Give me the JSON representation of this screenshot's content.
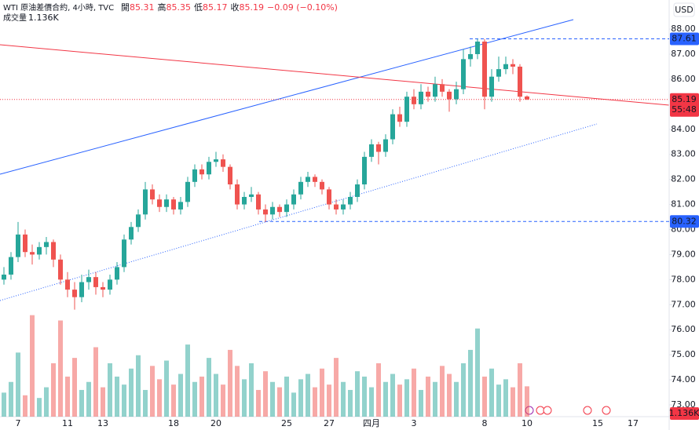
{
  "chart_data": {
    "type": "candlestick",
    "title": "WTI 原油差價合約, 4小時, TVC",
    "legend": {
      "open_label": "開",
      "open": 85.31,
      "high_label": "高",
      "high": 85.35,
      "low_label": "低",
      "low": 85.17,
      "close_label": "收",
      "close": 85.19,
      "change": "−0.09 (−0.10%)"
    },
    "volume_title": "成交量",
    "currency": "USD",
    "categories": [
      null,
      null,
      "7",
      null,
      null,
      null,
      null,
      null,
      null,
      "11",
      null,
      null,
      null,
      null,
      "13",
      null,
      null,
      null,
      null,
      null,
      null,
      null,
      null,
      null,
      "18",
      null,
      null,
      null,
      null,
      null,
      "20",
      null,
      null,
      null,
      null,
      null,
      null,
      null,
      null,
      null,
      "25",
      null,
      null,
      null,
      null,
      null,
      "27",
      null,
      null,
      null,
      null,
      null,
      "四月",
      null,
      null,
      null,
      null,
      null,
      "3",
      null,
      null,
      null,
      null,
      null,
      null,
      null,
      null,
      null,
      "8",
      null,
      null,
      null,
      null,
      null,
      "10",
      null,
      null,
      null,
      null,
      null,
      null,
      null,
      null,
      null,
      "15",
      null,
      null,
      null,
      null,
      "17"
    ],
    "ohlc": [
      [
        78.0,
        78.5,
        77.8,
        78.2
      ],
      [
        78.2,
        79.1,
        78.0,
        78.9
      ],
      [
        78.9,
        80.3,
        78.7,
        79.8
      ],
      [
        79.8,
        80.0,
        78.9,
        79.1
      ],
      [
        79.1,
        79.4,
        78.6,
        79.0
      ],
      [
        79.0,
        79.5,
        78.8,
        79.3
      ],
      [
        79.3,
        79.7,
        79.0,
        79.5
      ],
      [
        79.5,
        79.6,
        78.5,
        78.8
      ],
      [
        78.8,
        79.0,
        77.8,
        78.0
      ],
      [
        78.0,
        78.3,
        77.3,
        77.6
      ],
      [
        77.6,
        77.9,
        76.8,
        77.3
      ],
      [
        77.3,
        78.2,
        77.1,
        77.9
      ],
      [
        77.9,
        78.4,
        77.6,
        78.1
      ],
      [
        78.1,
        78.3,
        77.4,
        77.7
      ],
      [
        77.7,
        77.9,
        77.3,
        77.6
      ],
      [
        77.6,
        78.2,
        77.4,
        78.0
      ],
      [
        78.0,
        78.7,
        77.8,
        78.5
      ],
      [
        78.5,
        79.8,
        78.3,
        79.6
      ],
      [
        79.6,
        80.3,
        79.4,
        80.1
      ],
      [
        80.1,
        80.8,
        79.9,
        80.6
      ],
      [
        80.6,
        81.9,
        80.4,
        81.6
      ],
      [
        81.6,
        81.8,
        81.0,
        81.2
      ],
      [
        81.2,
        81.4,
        80.7,
        80.9
      ],
      [
        80.9,
        81.4,
        80.7,
        81.2
      ],
      [
        81.2,
        81.3,
        80.6,
        80.8
      ],
      [
        80.8,
        81.3,
        80.6,
        81.1
      ],
      [
        81.1,
        82.1,
        80.9,
        81.9
      ],
      [
        81.9,
        82.6,
        81.7,
        82.4
      ],
      [
        82.4,
        82.6,
        82.0,
        82.2
      ],
      [
        82.2,
        82.9,
        82.0,
        82.7
      ],
      [
        82.7,
        83.1,
        82.5,
        82.8
      ],
      [
        82.8,
        83.0,
        82.3,
        82.5
      ],
      [
        82.5,
        82.6,
        81.6,
        81.8
      ],
      [
        81.8,
        82.0,
        80.8,
        81.0
      ],
      [
        81.0,
        81.5,
        80.8,
        81.3
      ],
      [
        81.3,
        81.7,
        81.1,
        81.4
      ],
      [
        81.4,
        81.5,
        80.6,
        80.8
      ],
      [
        80.8,
        81.0,
        80.3,
        80.6
      ],
      [
        80.6,
        81.1,
        80.4,
        80.9
      ],
      [
        80.9,
        81.0,
        80.5,
        80.7
      ],
      [
        80.7,
        81.2,
        80.5,
        81.0
      ],
      [
        81.0,
        81.6,
        80.8,
        81.4
      ],
      [
        81.4,
        82.1,
        81.2,
        81.9
      ],
      [
        81.9,
        82.3,
        81.7,
        82.1
      ],
      [
        82.1,
        82.2,
        81.7,
        81.9
      ],
      [
        81.9,
        82.0,
        81.4,
        81.6
      ],
      [
        81.6,
        81.7,
        80.8,
        81.0
      ],
      [
        81.0,
        81.2,
        80.6,
        80.8
      ],
      [
        80.8,
        81.2,
        80.6,
        81.0
      ],
      [
        81.0,
        81.5,
        80.8,
        81.3
      ],
      [
        81.3,
        82.0,
        81.1,
        81.8
      ],
      [
        81.8,
        83.1,
        81.6,
        82.9
      ],
      [
        82.9,
        83.6,
        82.7,
        83.4
      ],
      [
        83.4,
        83.5,
        82.6,
        83.1
      ],
      [
        83.1,
        83.8,
        82.9,
        83.6
      ],
      [
        83.6,
        84.8,
        83.4,
        84.6
      ],
      [
        84.6,
        84.9,
        84.1,
        84.3
      ],
      [
        84.3,
        85.5,
        84.1,
        85.3
      ],
      [
        85.3,
        85.6,
        84.8,
        85.0
      ],
      [
        85.0,
        85.8,
        84.8,
        85.5
      ],
      [
        85.5,
        85.7,
        85.1,
        85.3
      ],
      [
        85.3,
        86.1,
        85.1,
        85.8
      ],
      [
        85.8,
        86.0,
        85.3,
        85.5
      ],
      [
        85.5,
        85.6,
        84.7,
        85.2
      ],
      [
        85.2,
        85.9,
        85.0,
        85.6
      ],
      [
        85.6,
        87.2,
        85.4,
        86.8
      ],
      [
        86.8,
        87.3,
        86.5,
        87.0
      ],
      [
        87.0,
        87.61,
        86.8,
        87.5
      ],
      [
        87.5,
        87.6,
        84.8,
        85.3
      ],
      [
        85.3,
        86.4,
        85.1,
        86.1
      ],
      [
        86.1,
        86.9,
        85.9,
        86.4
      ],
      [
        86.4,
        86.9,
        86.2,
        86.6
      ],
      [
        86.6,
        86.8,
        86.2,
        86.5
      ],
      [
        86.5,
        86.6,
        85.1,
        85.3
      ],
      [
        85.31,
        85.35,
        85.17,
        85.19
      ],
      null,
      null,
      null,
      null,
      null,
      null,
      null,
      null,
      null,
      null,
      null,
      null,
      null,
      null,
      null
    ],
    "volume": [
      0.9,
      1.3,
      2.4,
      0.8,
      3.8,
      0.7,
      1.1,
      2.0,
      3.6,
      1.5,
      2.2,
      1.0,
      1.3,
      2.6,
      1.1,
      2.0,
      1.5,
      1.2,
      1.8,
      2.3,
      1.0,
      1.9,
      1.4,
      2.1,
      1.2,
      1.6,
      2.7,
      1.3,
      1.5,
      2.2,
      1.6,
      1.2,
      2.5,
      1.9,
      1.4,
      2.0,
      1.0,
      1.7,
      1.3,
      1.1,
      1.5,
      0.9,
      1.4,
      1.6,
      1.1,
      1.8,
      1.2,
      2.2,
      1.3,
      1.0,
      1.7,
      1.5,
      1.1,
      2.0,
      1.3,
      1.6,
      1.2,
      1.4,
      1.8,
      1.0,
      1.5,
      1.3,
      1.9,
      1.6,
      1.3,
      2.0,
      2.5,
      3.3,
      1.5,
      1.8,
      1.2,
      1.4,
      1.1,
      2.0,
      1.136,
      null,
      null,
      null,
      null,
      null,
      null,
      null,
      null,
      null,
      null,
      null,
      null,
      null,
      null,
      null
    ],
    "up_color": "#26a69a",
    "down_color": "#ef5350",
    "ylim": [
      72.53,
      89.16
    ],
    "yticks": [
      {
        "value": 73,
        "label": "73.00"
      },
      {
        "value": 74,
        "label": "74.00"
      },
      {
        "value": 75,
        "label": "75.00"
      },
      {
        "value": 76,
        "label": "76.00"
      },
      {
        "value": 77,
        "label": "77.00"
      },
      {
        "value": 78,
        "label": "78.00"
      },
      {
        "value": 79,
        "label": "79.00"
      },
      {
        "value": 80,
        "label": "80.00"
      },
      {
        "value": 81,
        "label": "81.00"
      },
      {
        "value": 82,
        "label": "82.00"
      },
      {
        "value": 83,
        "label": "83.00"
      },
      {
        "value": 84,
        "label": "84.00"
      },
      {
        "value": 85,
        "label": "85.00"
      },
      {
        "value": 86,
        "label": "86.00"
      },
      {
        "value": 87,
        "label": "87.00"
      },
      {
        "value": 88,
        "label": "88.00"
      }
    ],
    "volume_lim": [
      0,
      15.6
    ],
    "levels": [
      87.61,
      80.32
    ],
    "last_price": 85.19,
    "countdown": "55:48",
    "last_volume": {
      "value": 1.136,
      "label": "1.136K"
    }
  }
}
